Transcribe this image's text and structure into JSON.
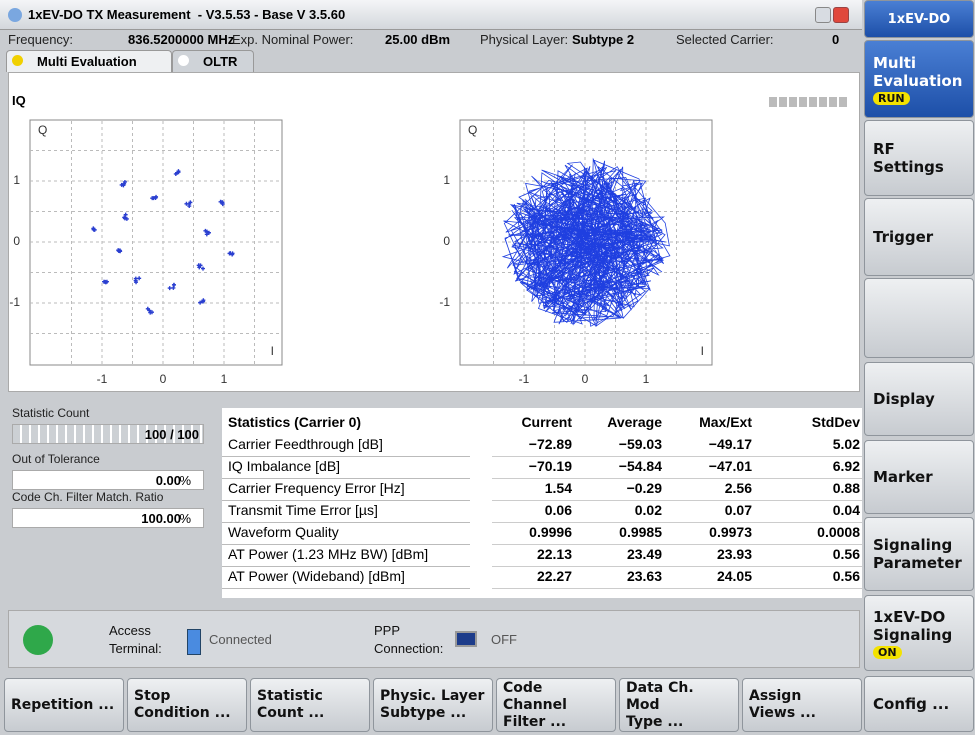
{
  "window": {
    "title": "1xEV-DO TX Measurement  - V3.5.53 - Base V 3.5.60"
  },
  "info": [
    {
      "label": "Frequency:",
      "value": "836.5200000 MHz"
    },
    {
      "label": "Exp. Nominal Power:",
      "value": "25.00 dBm"
    },
    {
      "label": "Physical Layer:",
      "value": "Subtype 2"
    },
    {
      "label": "Selected Carrier:",
      "value": "0"
    }
  ],
  "tabs": [
    "Multi Evaluation",
    "OLTR"
  ],
  "iq": {
    "label": "IQ",
    "plots": [
      {
        "y_axis": "Q",
        "x_axis": "I",
        "yticks": [
          "1",
          "0",
          "-1"
        ],
        "xticks": [
          "-1",
          "0",
          "1"
        ]
      },
      {
        "y_axis": "Q",
        "x_axis": "I",
        "yticks": [
          "1",
          "0",
          "-1"
        ],
        "xticks": [
          "-1",
          "0",
          "1"
        ]
      }
    ]
  },
  "side_stats": [
    {
      "label": "Statistic Count",
      "value": "100 / 100"
    },
    {
      "label": "Out of Tolerance",
      "value": "0.00",
      "unit": "%"
    },
    {
      "label": "Code Ch. Filter Match. Ratio",
      "value": "100.00",
      "unit": "%"
    }
  ],
  "table": {
    "header": [
      "Statistics (Carrier 0)",
      "Current",
      "Average",
      "Max/Ext",
      "StdDev"
    ],
    "rows": [
      [
        "Carrier Feedthrough [dB]",
        "−72.89",
        "−59.03",
        "−49.17",
        "5.02"
      ],
      [
        "IQ Imbalance [dB]",
        "−70.19",
        "−54.84",
        "−47.01",
        "6.92"
      ],
      [
        "Carrier Frequency Error [Hz]",
        "1.54",
        "−0.29",
        "2.56",
        "0.88"
      ],
      [
        "Transmit Time Error [µs]",
        "0.06",
        "0.02",
        "0.07",
        "0.04"
      ],
      [
        "Waveform Quality",
        "0.9996",
        "0.9985",
        "0.9973",
        "0.0008"
      ],
      [
        "AT Power (1.23 MHz BW) [dBm]",
        "22.13",
        "23.49",
        "23.93",
        "0.56"
      ],
      [
        "AT Power (Wideband) [dBm]",
        "22.27",
        "23.63",
        "24.05",
        "0.56"
      ]
    ]
  },
  "status": {
    "access_label": [
      "Access",
      "Terminal:"
    ],
    "access_value": "Connected",
    "ppp_label": [
      "PPP",
      "Connection:"
    ],
    "ppp_value": "OFF"
  },
  "softkeys": [
    {
      "lines": [
        "1xEV-DO"
      ]
    },
    {
      "lines": [
        "Multi",
        "Evaluation"
      ],
      "badge": "RUN"
    },
    {
      "lines": [
        "RF",
        "Settings"
      ]
    },
    {
      "lines": [
        "Trigger"
      ]
    },
    {
      "lines": []
    },
    {
      "lines": [
        "Display"
      ]
    },
    {
      "lines": [
        "Marker"
      ]
    },
    {
      "lines": [
        "Signaling",
        "Parameter"
      ]
    },
    {
      "lines": [
        "1xEV-DO",
        "Signaling"
      ],
      "badge": "ON"
    },
    {
      "lines": [
        "Config ..."
      ]
    }
  ],
  "buttons": [
    [
      "Repetition ..."
    ],
    [
      "Stop",
      "Condition ..."
    ],
    [
      "Statistic",
      "Count ..."
    ],
    [
      "Physic. Layer",
      "Subtype ..."
    ],
    [
      "Code Channel",
      "Filter ..."
    ],
    [
      "Data Ch. Mod",
      "Type ..."
    ],
    [
      "Assign",
      "Views ..."
    ]
  ]
}
